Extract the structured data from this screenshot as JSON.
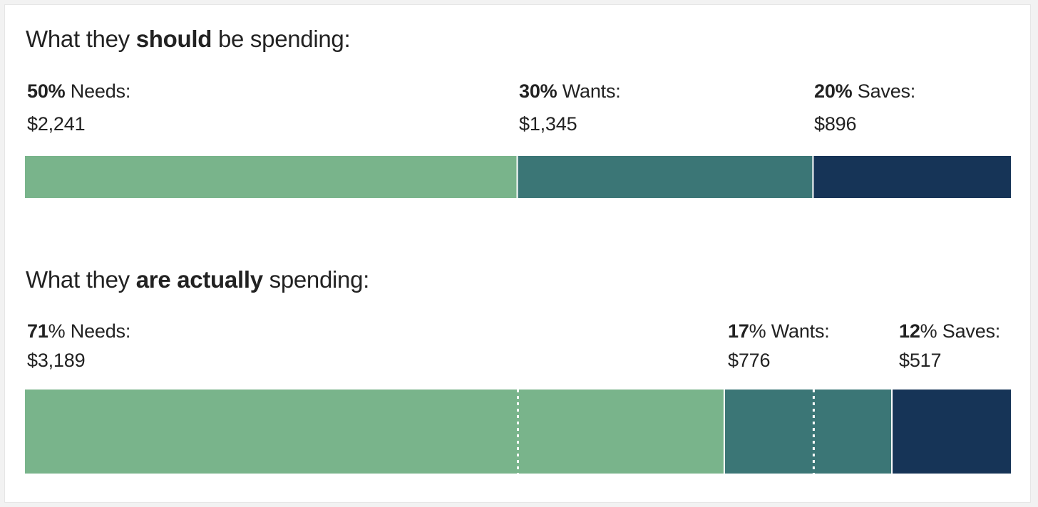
{
  "chart_data": [
    {
      "type": "bar",
      "orientation": "horizontal-stacked",
      "title_parts": [
        "What they ",
        "should",
        " be spending:"
      ],
      "categories": [
        "Needs",
        "Wants",
        "Saves"
      ],
      "percent_labels": [
        "50%",
        "30%",
        "20%"
      ],
      "category_labels": [
        "Needs:",
        "Wants:",
        "Saves:"
      ],
      "amounts": [
        "$2,241",
        "$1,345",
        "$896"
      ],
      "values": [
        50,
        30,
        20
      ],
      "colors": [
        "#79b48b",
        "#3b7676",
        "#163457"
      ]
    },
    {
      "type": "bar",
      "orientation": "horizontal-stacked",
      "title_parts": [
        "What they ",
        "are actually",
        " spending:"
      ],
      "categories": [
        "Needs",
        "Wants",
        "Saves"
      ],
      "percent_labels": [
        "71",
        "17",
        "12"
      ],
      "percent_suffix": "%",
      "category_labels": [
        "Needs:",
        "Wants:",
        "Saves:"
      ],
      "amounts": [
        "$3,189",
        "$776",
        "$517"
      ],
      "values": [
        71,
        17,
        12
      ],
      "reference_lines": [
        50,
        80
      ],
      "colors": [
        "#79b48b",
        "#3b7676",
        "#163457"
      ]
    }
  ]
}
